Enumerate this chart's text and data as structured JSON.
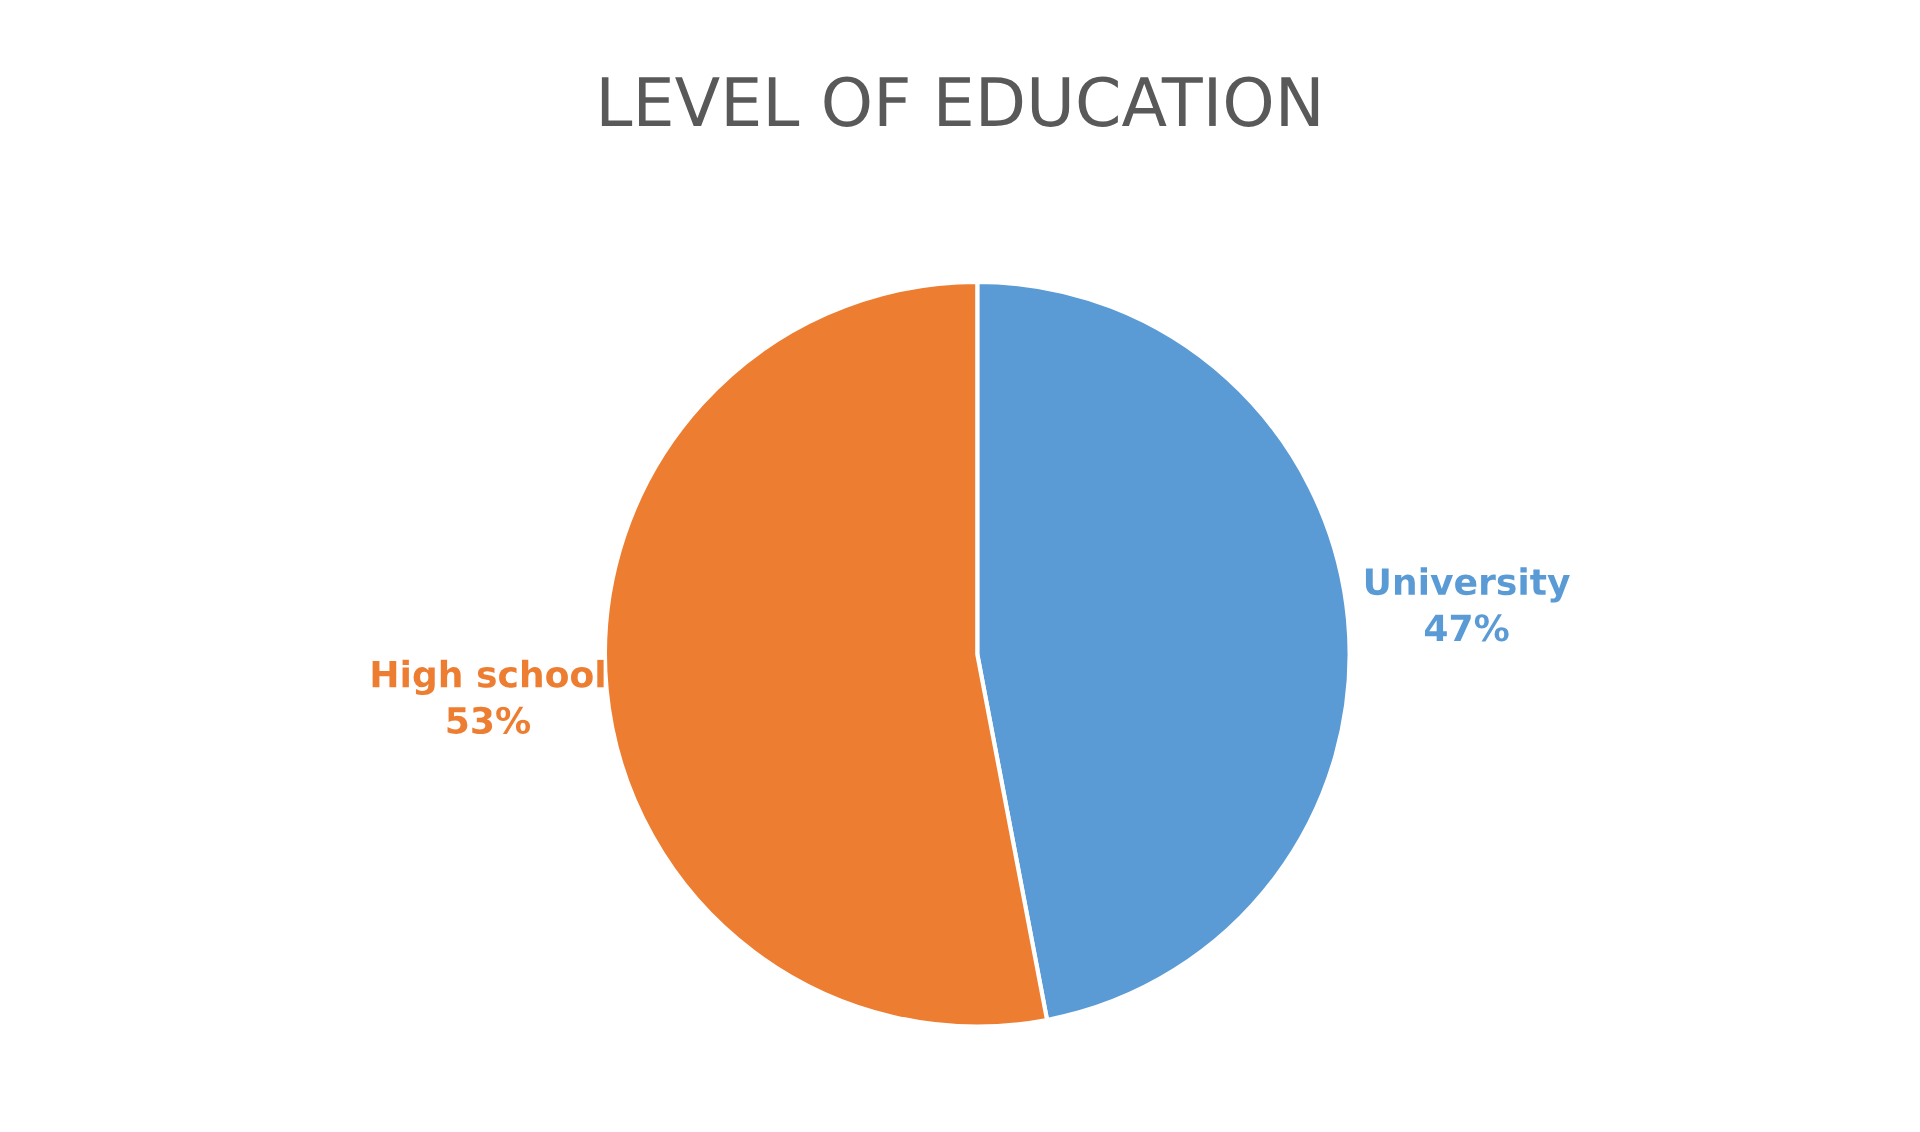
{
  "chart_data": {
    "type": "pie",
    "title": "LEVEL OF EDUCATION",
    "categories": [
      "University",
      "High school"
    ],
    "values": [
      47,
      53
    ],
    "colors": [
      "#5b9bd5",
      "#ed7d31"
    ],
    "value_labels": [
      "47%",
      "53%"
    ],
    "legend": false
  }
}
